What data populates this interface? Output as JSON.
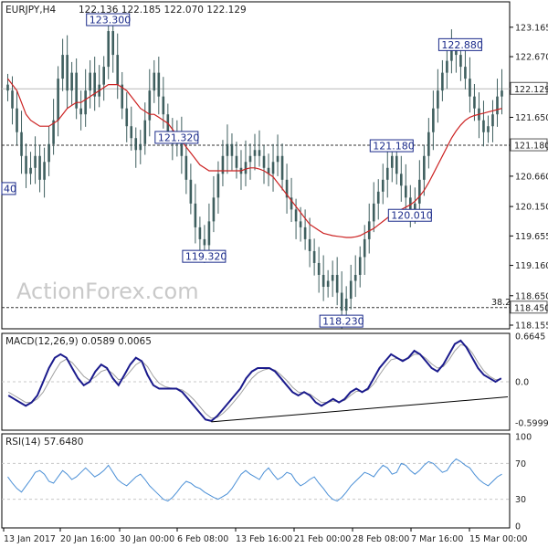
{
  "chart_data": [
    {
      "type": "candlestick",
      "symbol_header": "EURJPY,H4",
      "ohlc_header": "122.136 122.185 122.070 122.129",
      "ylim": [
        118.155,
        123.5
      ],
      "y_ticks": [
        "123.165",
        "122.670",
        "122.180",
        "121.650",
        "121.160",
        "120.660",
        "120.150",
        "119.655",
        "119.160",
        "118.650",
        "118.155"
      ],
      "last_price": 122.129,
      "last_price_label": "122.129",
      "support_line": 121.18,
      "support_label": "121.180",
      "fib_level": 118.45,
      "fib_level_label": "118.450",
      "fib_tag": "38.2",
      "swing_labels": [
        {
          "text": "123.300",
          "value": 123.3,
          "index": 22
        },
        {
          "text": "121.320",
          "value": 121.32,
          "index": 37
        },
        {
          "text": "119.320",
          "value": 119.32,
          "index": 43
        },
        {
          "text": "118.230",
          "value": 118.23,
          "index": 73
        },
        {
          "text": "121.180",
          "value": 121.18,
          "index": 84
        },
        {
          "text": "120.010",
          "value": 120.01,
          "index": 88
        },
        {
          "text": "122.880",
          "value": 122.88,
          "index": 99
        }
      ],
      "left_cut_label": "40",
      "closes": [
        122.1,
        121.8,
        121.4,
        121.0,
        120.7,
        120.8,
        121.0,
        120.6,
        120.9,
        121.2,
        121.6,
        122.3,
        122.7,
        122.1,
        122.4,
        121.8,
        121.7,
        122.1,
        122.4,
        122.0,
        122.2,
        122.5,
        123.1,
        122.7,
        122.2,
        121.8,
        121.5,
        121.3,
        121.1,
        121.2,
        121.6,
        122.1,
        122.4,
        122.0,
        121.7,
        121.4,
        121.2,
        121.3,
        121.0,
        120.6,
        120.2,
        119.8,
        119.6,
        119.5,
        119.9,
        120.3,
        120.7,
        121.0,
        121.2,
        121.0,
        120.8,
        120.7,
        120.9,
        121.0,
        121.1,
        121.0,
        120.8,
        120.7,
        120.9,
        121.0,
        120.6,
        120.3,
        120.1,
        119.9,
        119.8,
        119.6,
        119.4,
        119.2,
        119.0,
        118.8,
        118.9,
        119.0,
        118.7,
        118.4,
        118.6,
        118.9,
        119.0,
        119.3,
        119.6,
        119.9,
        120.2,
        120.4,
        120.6,
        120.8,
        121.0,
        120.7,
        120.5,
        120.3,
        120.1,
        120.2,
        120.6,
        121.0,
        121.4,
        121.8,
        122.1,
        122.4,
        122.6,
        122.8,
        122.7,
        122.5,
        122.3,
        122.0,
        121.8,
        121.6,
        121.4,
        121.5,
        121.7,
        122.0,
        122.1
      ],
      "ma": [
        122.3,
        122.2,
        122.1,
        121.9,
        121.7,
        121.6,
        121.55,
        121.5,
        121.5,
        121.5,
        121.55,
        121.6,
        121.7,
        121.8,
        121.85,
        121.9,
        121.9,
        121.95,
        122.0,
        122.05,
        122.1,
        122.15,
        122.2,
        122.2,
        122.2,
        122.15,
        122.1,
        122.0,
        121.9,
        121.8,
        121.75,
        121.7,
        121.7,
        121.65,
        121.6,
        121.55,
        121.45,
        121.35,
        121.25,
        121.15,
        121.05,
        120.95,
        120.85,
        120.8,
        120.75,
        120.75,
        120.75,
        120.75,
        120.75,
        120.75,
        120.75,
        120.75,
        120.78,
        120.8,
        120.8,
        120.78,
        120.75,
        120.7,
        120.65,
        120.55,
        120.45,
        120.35,
        120.25,
        120.15,
        120.05,
        119.95,
        119.85,
        119.8,
        119.75,
        119.7,
        119.68,
        119.66,
        119.65,
        119.64,
        119.63,
        119.63,
        119.64,
        119.66,
        119.7,
        119.74,
        119.78,
        119.84,
        119.9,
        119.96,
        120.02,
        120.06,
        120.1,
        120.14,
        120.18,
        120.24,
        120.32,
        120.42,
        120.55,
        120.7,
        120.85,
        121.0,
        121.15,
        121.3,
        121.42,
        121.52,
        121.6,
        121.65,
        121.68,
        121.7,
        121.72,
        121.74,
        121.76,
        121.78,
        121.8
      ]
    },
    {
      "type": "line",
      "title": "MACD(12,26,9) 0.0589 0.0065",
      "y_ticks": [
        "0.6645",
        "0.0",
        "-0.5999"
      ],
      "ylim": [
        -0.6645,
        0.6645
      ],
      "main": [
        -0.2,
        -0.25,
        -0.3,
        -0.35,
        -0.3,
        -0.2,
        0.0,
        0.2,
        0.35,
        0.4,
        0.35,
        0.2,
        0.05,
        -0.05,
        0.0,
        0.15,
        0.25,
        0.2,
        0.05,
        -0.05,
        0.1,
        0.25,
        0.35,
        0.3,
        0.1,
        -0.05,
        -0.1,
        -0.1,
        -0.1,
        -0.1,
        -0.15,
        -0.25,
        -0.35,
        -0.45,
        -0.55,
        -0.57,
        -0.5,
        -0.4,
        -0.3,
        -0.2,
        -0.1,
        0.05,
        0.15,
        0.2,
        0.2,
        0.2,
        0.15,
        0.05,
        -0.05,
        -0.15,
        -0.2,
        -0.15,
        -0.2,
        -0.3,
        -0.35,
        -0.3,
        -0.25,
        -0.3,
        -0.25,
        -0.15,
        -0.1,
        -0.15,
        -0.1,
        0.05,
        0.2,
        0.3,
        0.4,
        0.35,
        0.3,
        0.35,
        0.45,
        0.4,
        0.3,
        0.2,
        0.15,
        0.25,
        0.4,
        0.55,
        0.6,
        0.5,
        0.35,
        0.2,
        0.1,
        0.05,
        0.0,
        0.05
      ],
      "signal": [
        -0.15,
        -0.2,
        -0.25,
        -0.3,
        -0.3,
        -0.25,
        -0.15,
        0.0,
        0.15,
        0.28,
        0.33,
        0.28,
        0.18,
        0.08,
        0.02,
        0.07,
        0.15,
        0.18,
        0.12,
        0.03,
        0.05,
        0.15,
        0.25,
        0.3,
        0.22,
        0.08,
        -0.02,
        -0.07,
        -0.09,
        -0.1,
        -0.12,
        -0.18,
        -0.26,
        -0.36,
        -0.46,
        -0.53,
        -0.52,
        -0.46,
        -0.38,
        -0.28,
        -0.18,
        -0.06,
        0.05,
        0.13,
        0.17,
        0.19,
        0.17,
        0.1,
        0.02,
        -0.08,
        -0.15,
        -0.16,
        -0.18,
        -0.24,
        -0.3,
        -0.3,
        -0.28,
        -0.29,
        -0.27,
        -0.2,
        -0.14,
        -0.14,
        -0.12,
        -0.03,
        0.1,
        0.22,
        0.32,
        0.34,
        0.32,
        0.34,
        0.4,
        0.4,
        0.34,
        0.26,
        0.2,
        0.22,
        0.32,
        0.45,
        0.54,
        0.52,
        0.42,
        0.28,
        0.16,
        0.08,
        0.03,
        0.04
      ]
    },
    {
      "type": "line",
      "title": "RSI(14) 57.6480",
      "y_ticks": [
        "100",
        "70",
        "30",
        "0"
      ],
      "ylim": [
        0,
        100
      ],
      "reference_lines": [
        70,
        30
      ],
      "values": [
        55,
        48,
        42,
        38,
        45,
        52,
        60,
        62,
        58,
        50,
        48,
        55,
        62,
        58,
        52,
        55,
        60,
        65,
        60,
        55,
        58,
        62,
        68,
        60,
        52,
        48,
        45,
        50,
        55,
        58,
        52,
        45,
        40,
        35,
        30,
        28,
        32,
        38,
        45,
        50,
        48,
        44,
        42,
        38,
        35,
        32,
        30,
        33,
        36,
        42,
        50,
        58,
        62,
        58,
        55,
        52,
        60,
        65,
        58,
        52,
        55,
        60,
        58,
        50,
        45,
        48,
        52,
        55,
        48,
        42,
        35,
        30,
        28,
        32,
        38,
        45,
        50,
        55,
        60,
        58,
        55,
        62,
        68,
        65,
        58,
        60,
        70,
        68,
        62,
        58,
        62,
        68,
        72,
        70,
        65,
        60,
        62,
        70,
        75,
        72,
        68,
        65,
        58,
        52,
        48,
        45,
        50,
        55,
        58
      ]
    }
  ],
  "x_axis_labels": [
    "13 Jan 2017",
    "20 Jan 16:00",
    "30 Jan 00:00",
    "6 Feb 08:00",
    "13 Feb 16:00",
    "21 Feb 00:00",
    "28 Feb 08:00",
    "7 Mar 16:00",
    "15 Mar 00:00"
  ],
  "watermark": "ActionForex.com",
  "colors": {
    "candle": "#3f5f5f",
    "ma": "#cc2222",
    "macd": "#1a1a8c",
    "signal": "#a0a0a0",
    "rsi": "#4a8fd6",
    "label_box": "#1a2a8a",
    "grid": "#e0e0e0"
  }
}
